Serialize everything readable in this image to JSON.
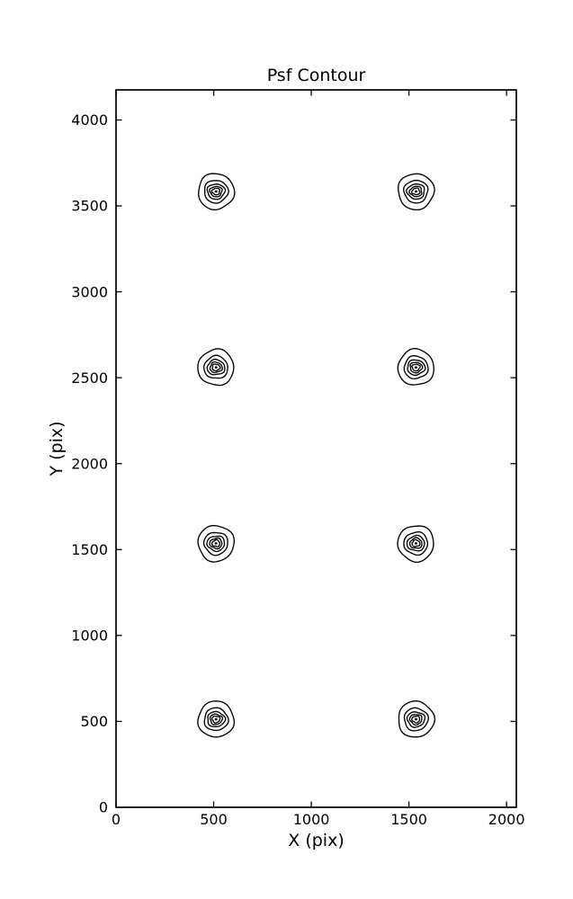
{
  "chart_data": {
    "type": "contour",
    "title": "Psf Contour",
    "xlabel": "X (pix)",
    "ylabel": "Y (pix)",
    "xlim": [
      0,
      2050
    ],
    "ylim": [
      0,
      4175
    ],
    "xticks": [
      0,
      500,
      1000,
      1500,
      2000
    ],
    "xtick_labels": [
      "0",
      "500",
      "1000",
      "1500",
      "2000"
    ],
    "yticks": [
      0,
      500,
      1000,
      1500,
      2000,
      2500,
      3000,
      3500,
      4000
    ],
    "ytick_labels": [
      "0",
      "500",
      "1000",
      "1500",
      "2000",
      "2500",
      "3000",
      "3500",
      "4000"
    ],
    "grid": false,
    "legend": null,
    "line_color": "#000000",
    "background_color": "#ffffff",
    "psf_centers": [
      {
        "x": 512,
        "y": 512
      },
      {
        "x": 1536,
        "y": 512
      },
      {
        "x": 512,
        "y": 1536
      },
      {
        "x": 1536,
        "y": 1536
      },
      {
        "x": 512,
        "y": 2560
      },
      {
        "x": 1536,
        "y": 2560
      },
      {
        "x": 512,
        "y": 3584
      },
      {
        "x": 1536,
        "y": 3584
      }
    ],
    "contour_level_radii_data_units": [
      [
        92,
        105
      ],
      [
        61,
        66
      ],
      [
        45,
        44
      ],
      [
        31,
        30
      ],
      [
        20,
        19
      ]
    ],
    "core_dot_radius_data_units": [
      7,
      7
    ]
  }
}
